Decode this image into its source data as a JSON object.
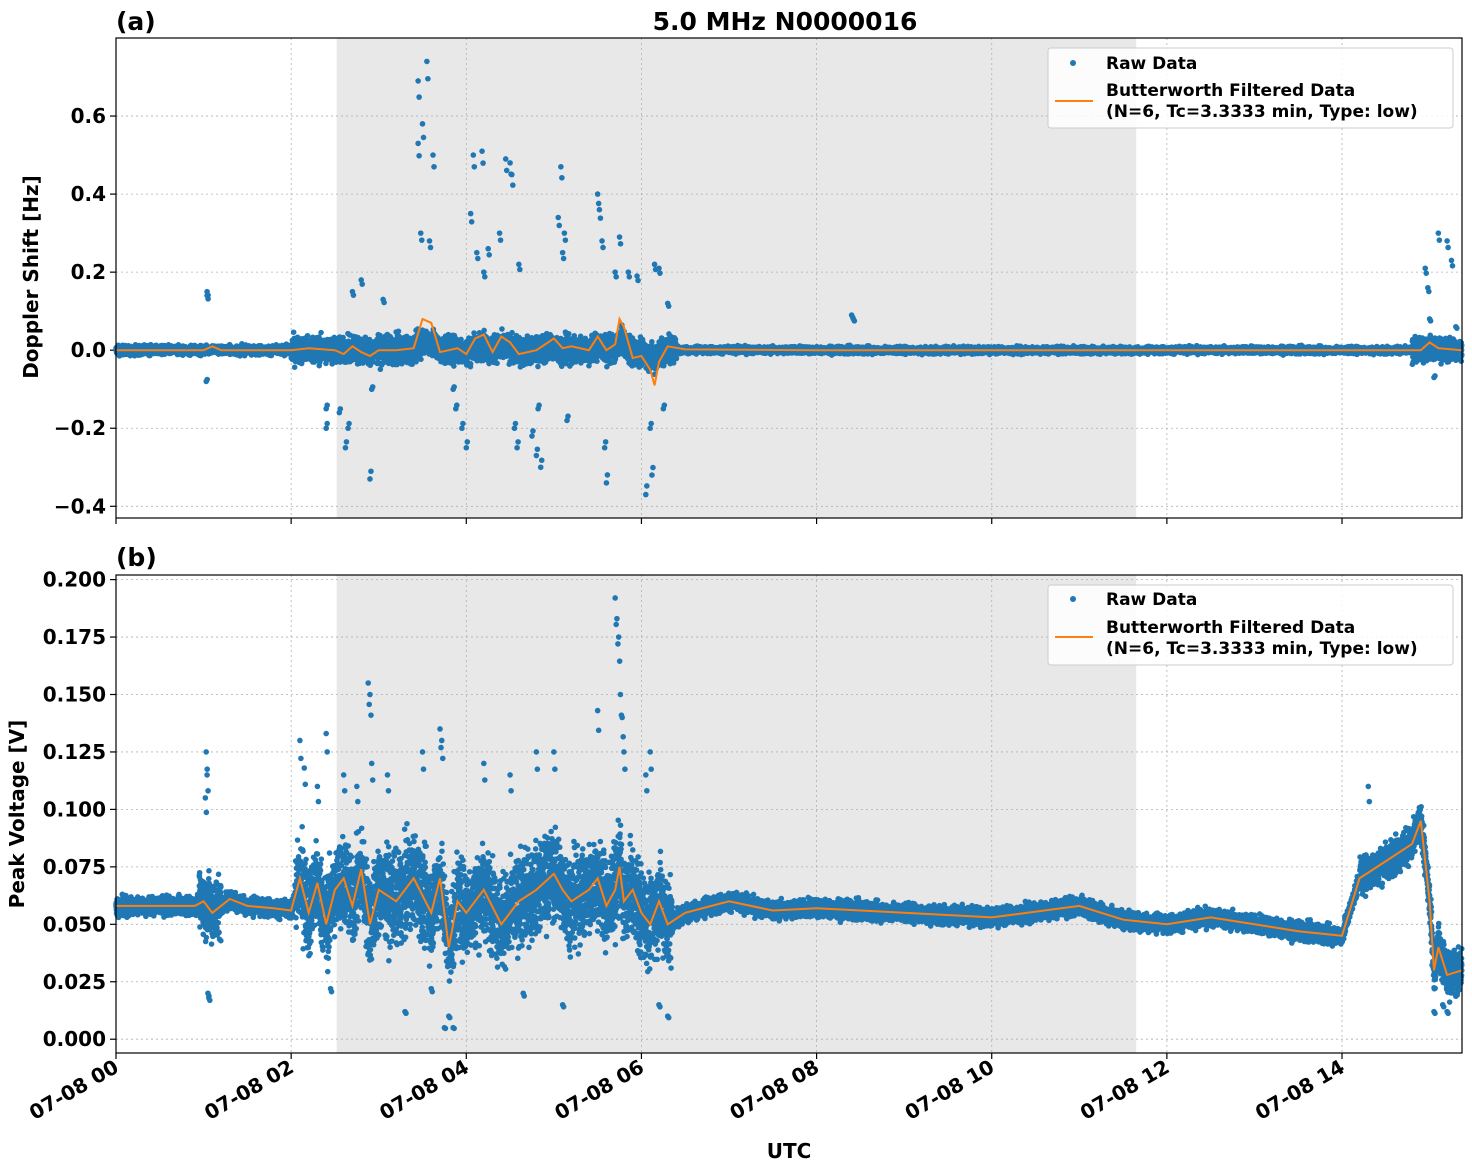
{
  "figure": {
    "title": "5.0 MHz N0000016",
    "xlabel": "UTC",
    "colors": {
      "raw": "#1f77b4",
      "filtered": "#ff7f0e",
      "shade": "#e8e8e8",
      "grid": "#b0b0b0"
    }
  },
  "chart_data": [
    {
      "type": "scatter",
      "panel_label": "(a)",
      "ylabel": "Doppler Shift [Hz]",
      "xlim": [
        "07-08 00:00",
        "07-08 15:22"
      ],
      "ylim": [
        -0.43,
        0.8
      ],
      "yticks": [
        -0.4,
        -0.2,
        0.0,
        0.2,
        0.4,
        0.6
      ],
      "ytick_labels": [
        "−0.4",
        "−0.2",
        "0.0",
        "0.2",
        "0.4",
        "0.6"
      ],
      "xticks_hours": [
        0,
        2,
        4,
        6,
        8,
        10,
        12,
        14
      ],
      "shaded_region_hours": [
        2.52,
        11.65
      ],
      "grid": true,
      "legend": {
        "placement": "top-right",
        "raw_label": "Raw Data",
        "filtered_label_line1": "Butterworth Filtered Data",
        "filtered_label_line2": "(N=6, Tc=3.3333 min, Type: low)"
      },
      "series": [
        {
          "name": "Butterworth Filtered Data",
          "kind": "line",
          "x_hours": [
            0,
            0.5,
            1.0,
            1.1,
            1.2,
            1.5,
            2.0,
            2.2,
            2.5,
            2.6,
            2.7,
            2.8,
            2.9,
            3.0,
            3.2,
            3.4,
            3.5,
            3.6,
            3.7,
            3.8,
            3.9,
            4.0,
            4.1,
            4.2,
            4.3,
            4.4,
            4.5,
            4.6,
            4.8,
            5.0,
            5.1,
            5.2,
            5.4,
            5.5,
            5.6,
            5.7,
            5.75,
            5.8,
            5.9,
            6.0,
            6.1,
            6.15,
            6.2,
            6.3,
            6.5,
            8,
            10,
            12,
            14,
            14.9,
            15.0,
            15.1,
            15.37
          ],
          "values": [
            0.0,
            0.0,
            0.0,
            0.01,
            0.0,
            0.0,
            0.0,
            0.005,
            0.0,
            -0.01,
            0.01,
            -0.005,
            -0.015,
            0.0,
            0.0,
            0.005,
            0.08,
            0.07,
            -0.005,
            0.0,
            0.005,
            -0.01,
            0.03,
            0.04,
            -0.005,
            0.035,
            0.02,
            -0.01,
            0.0,
            0.03,
            0.005,
            0.01,
            0.0,
            0.035,
            0.0,
            0.015,
            0.08,
            0.06,
            -0.02,
            -0.015,
            -0.05,
            -0.09,
            -0.03,
            0.01,
            0.002,
            0.0,
            0.0,
            0.0,
            0.0,
            0.0,
            0.02,
            0.005,
            0.0
          ]
        },
        {
          "name": "Raw Data",
          "kind": "scatter",
          "outliers_x_hours": [
            1.04,
            1.04,
            1.03,
            2.4,
            2.4,
            2.55,
            2.65,
            2.62,
            2.7,
            2.8,
            2.9,
            2.92,
            3.05,
            3.45,
            3.45,
            3.48,
            3.5,
            3.55,
            3.58,
            3.62,
            3.85,
            3.88,
            3.95,
            4.0,
            4.05,
            4.08,
            4.12,
            4.18,
            4.2,
            4.25,
            4.38,
            4.45,
            4.5,
            4.52,
            4.55,
            4.58,
            4.6,
            4.75,
            4.8,
            4.82,
            4.85,
            5.05,
            5.08,
            5.1,
            5.12,
            5.15,
            5.5,
            5.52,
            5.55,
            5.58,
            5.6,
            5.7,
            5.75,
            5.85,
            5.95,
            6.05,
            6.1,
            6.12,
            6.15,
            6.2,
            6.25,
            6.3,
            8.4,
            8.42,
            14.95,
            14.98,
            15.0,
            15.05,
            15.1,
            15.2,
            15.25,
            15.3
          ],
          "outlier_values": [
            0.15,
            0.14,
            -0.08,
            -0.2,
            -0.15,
            -0.16,
            -0.2,
            -0.25,
            0.15,
            0.18,
            -0.33,
            -0.1,
            0.13,
            0.69,
            0.53,
            0.3,
            0.58,
            0.74,
            0.28,
            0.5,
            -0.1,
            -0.15,
            -0.2,
            -0.25,
            0.35,
            0.5,
            0.25,
            0.51,
            0.2,
            0.26,
            0.3,
            0.49,
            0.48,
            0.45,
            -0.2,
            -0.25,
            0.22,
            -0.22,
            -0.27,
            -0.15,
            -0.3,
            0.34,
            0.47,
            0.25,
            0.3,
            -0.18,
            0.4,
            0.36,
            0.28,
            -0.25,
            -0.34,
            0.2,
            0.29,
            0.2,
            0.19,
            -0.37,
            -0.2,
            -0.32,
            0.22,
            0.21,
            -0.15,
            0.12,
            0.09,
            0.08,
            0.21,
            0.16,
            0.08,
            -0.07,
            0.3,
            0.28,
            0.23,
            0.06
          ]
        }
      ]
    },
    {
      "type": "scatter",
      "panel_label": "(b)",
      "ylabel": "Peak Voltage [V]",
      "xlim": [
        "07-08 00:00",
        "07-08 15:22"
      ],
      "ylim": [
        -0.006,
        0.202
      ],
      "yticks": [
        0.0,
        0.025,
        0.05,
        0.075,
        0.1,
        0.125,
        0.15,
        0.175,
        0.2
      ],
      "ytick_labels": [
        "0.000",
        "0.025",
        "0.050",
        "0.075",
        "0.100",
        "0.125",
        "0.150",
        "0.175",
        "0.200"
      ],
      "xticks_hours": [
        0,
        2,
        4,
        6,
        8,
        10,
        12,
        14
      ],
      "xtick_labels": [
        "07-08 00",
        "07-08 02",
        "07-08 04",
        "07-08 06",
        "07-08 08",
        "07-08 10",
        "07-08 12",
        "07-08 14"
      ],
      "shaded_region_hours": [
        2.52,
        11.65
      ],
      "grid": true,
      "legend": {
        "placement": "top-right",
        "raw_label": "Raw Data",
        "filtered_label_line1": "Butterworth Filtered Data",
        "filtered_label_line2": "(N=6, Tc=3.3333 min, Type: low)"
      },
      "series": [
        {
          "name": "Butterworth Filtered Data",
          "kind": "line",
          "x_hours": [
            0,
            0.5,
            0.9,
            1.0,
            1.1,
            1.3,
            1.5,
            1.8,
            2.0,
            2.1,
            2.2,
            2.3,
            2.4,
            2.5,
            2.6,
            2.7,
            2.8,
            2.9,
            3.0,
            3.2,
            3.4,
            3.6,
            3.7,
            3.8,
            3.9,
            4.0,
            4.2,
            4.4,
            4.6,
            4.8,
            5.0,
            5.1,
            5.2,
            5.4,
            5.5,
            5.6,
            5.7,
            5.75,
            5.8,
            5.9,
            6.0,
            6.1,
            6.2,
            6.3,
            6.5,
            7,
            7.5,
            8,
            9,
            10,
            11,
            11.5,
            12,
            12.5,
            13,
            13.5,
            14,
            14.2,
            14.4,
            14.6,
            14.8,
            14.9,
            15.0,
            15.05,
            15.1,
            15.2,
            15.37
          ],
          "values": [
            0.058,
            0.058,
            0.058,
            0.06,
            0.055,
            0.061,
            0.058,
            0.057,
            0.056,
            0.07,
            0.055,
            0.068,
            0.05,
            0.065,
            0.07,
            0.058,
            0.074,
            0.05,
            0.065,
            0.06,
            0.07,
            0.055,
            0.07,
            0.04,
            0.06,
            0.055,
            0.065,
            0.05,
            0.06,
            0.065,
            0.072,
            0.065,
            0.06,
            0.065,
            0.07,
            0.058,
            0.065,
            0.075,
            0.06,
            0.065,
            0.055,
            0.05,
            0.06,
            0.05,
            0.055,
            0.06,
            0.056,
            0.057,
            0.055,
            0.053,
            0.058,
            0.052,
            0.05,
            0.053,
            0.05,
            0.047,
            0.045,
            0.07,
            0.075,
            0.08,
            0.085,
            0.095,
            0.06,
            0.03,
            0.04,
            0.028,
            0.03
          ]
        },
        {
          "name": "Raw Data",
          "kind": "scatter",
          "outliers_x_hours": [
            1.03,
            1.04,
            1.05,
            1.06,
            1.02,
            2.1,
            2.15,
            2.3,
            2.4,
            2.45,
            2.6,
            2.75,
            2.88,
            2.9,
            2.92,
            3.1,
            3.3,
            3.5,
            3.6,
            3.7,
            3.72,
            3.75,
            3.8,
            3.85,
            4.2,
            4.5,
            4.65,
            4.8,
            5.0,
            5.1,
            5.5,
            5.7,
            5.72,
            5.74,
            5.76,
            5.78,
            5.8,
            6.05,
            6.1,
            6.2,
            6.3,
            14.3,
            15.05,
            15.15,
            15.2
          ],
          "outlier_values": [
            0.125,
            0.115,
            0.02,
            0.018,
            0.105,
            0.13,
            0.118,
            0.11,
            0.133,
            0.022,
            0.115,
            0.11,
            0.155,
            0.15,
            0.12,
            0.115,
            0.012,
            0.125,
            0.022,
            0.135,
            0.13,
            0.005,
            0.01,
            0.005,
            0.12,
            0.115,
            0.02,
            0.125,
            0.125,
            0.015,
            0.143,
            0.192,
            0.183,
            0.175,
            0.15,
            0.14,
            0.125,
            0.115,
            0.125,
            0.015,
            0.01,
            0.11,
            0.012,
            0.015,
            0.012
          ]
        }
      ]
    }
  ]
}
